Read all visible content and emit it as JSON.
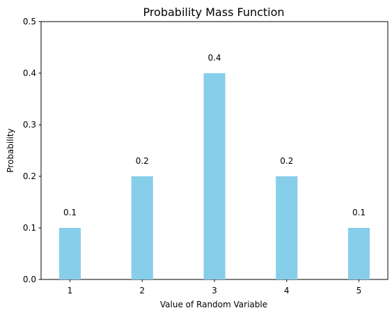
{
  "chart_data": {
    "type": "bar",
    "title": "Probability Mass Function",
    "xlabel": "Value of Random Variable",
    "ylabel": "Probability",
    "categories": [
      "1",
      "2",
      "3",
      "4",
      "5"
    ],
    "x": [
      1,
      2,
      3,
      4,
      5
    ],
    "values": [
      0.1,
      0.2,
      0.4,
      0.2,
      0.1
    ],
    "data_labels": [
      "0.1",
      "0.2",
      "0.4",
      "0.2",
      "0.1"
    ],
    "ylim": [
      0,
      0.5
    ],
    "yticks": [
      0.0,
      0.1,
      0.2,
      0.3,
      0.4,
      0.5
    ],
    "ytick_labels": [
      "0.0",
      "0.1",
      "0.2",
      "0.3",
      "0.4",
      "0.5"
    ],
    "grid": false,
    "bar_color": "#87ceeb"
  }
}
